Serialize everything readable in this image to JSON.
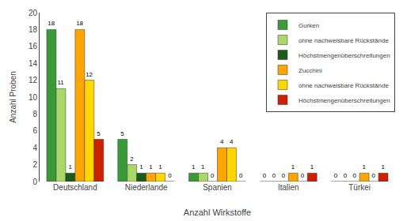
{
  "chart_data": {
    "type": "bar",
    "categories": [
      "Deutschland",
      "Niederlande",
      "Spanien",
      "Italien",
      "Türkei"
    ],
    "series": [
      {
        "name": "Gurken",
        "color": "#3A9A3A",
        "values": [
          18,
          5,
          1,
          0,
          0
        ]
      },
      {
        "name": "ohne nachweisbare Rückstände",
        "color": "#A8D868",
        "values": [
          11,
          2,
          1,
          0,
          0
        ]
      },
      {
        "name": "Höchstmengenüberschreitungen",
        "color": "#1A5C1A",
        "values": [
          1,
          1,
          0,
          0,
          0
        ]
      },
      {
        "name": "Zucchini",
        "color": "#FFA500",
        "values": [
          18,
          1,
          4,
          1,
          1
        ]
      },
      {
        "name": "ohne nachweisbare Rückstände",
        "color": "#FFD700",
        "values": [
          12,
          1,
          4,
          0,
          0
        ]
      },
      {
        "name": "Höchstmengenüberschreitungen",
        "color": "#CC2200",
        "values": [
          5,
          0,
          0,
          1,
          1
        ]
      }
    ],
    "xlabel": "Anzahl Wirkstoffe",
    "ylabel": "Anzahl Proben",
    "ylim": [
      0,
      20
    ],
    "yticks": [
      0,
      2,
      4,
      6,
      8,
      10,
      12,
      14,
      16,
      18,
      20
    ],
    "grid": false,
    "legend": "upper right",
    "data_labels": true
  }
}
